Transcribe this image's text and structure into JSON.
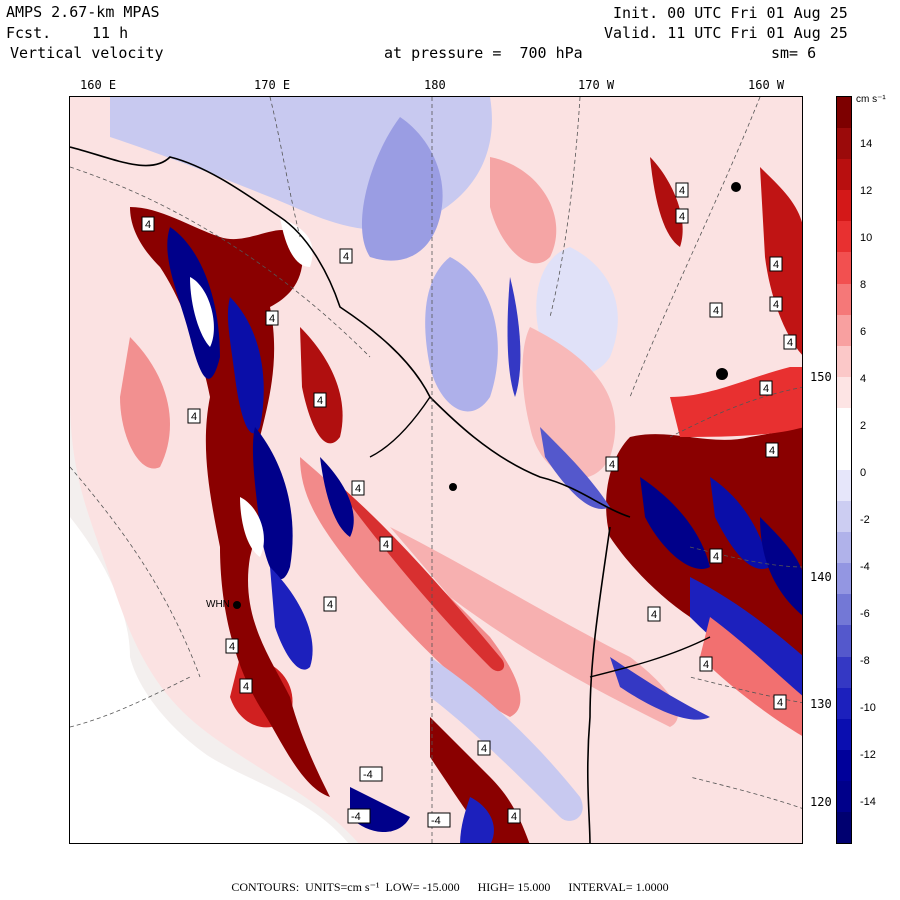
{
  "header": {
    "model": "AMPS 2.67-km MPAS",
    "fcst_label": "Fcst.",
    "fcst_value": "11 h",
    "variable": "Vertical velocity",
    "init": "Init. 00 UTC Fri 01 Aug 25",
    "valid": "Valid. 11 UTC Fri 01 Aug 25",
    "pressure": "at pressure =  700 hPa",
    "smoothing": "sm= 6"
  },
  "lon_ticks": [
    "160 E",
    "170 E",
    "180",
    "170 W",
    "160 W"
  ],
  "lat_ticks": [
    "150 W",
    "140 W",
    "130 W",
    "120 W"
  ],
  "colorbar": {
    "units": "cm s⁻¹",
    "labels": [
      "14",
      "12",
      "10",
      "8",
      "6",
      "4",
      "2",
      "0",
      "-2",
      "-4",
      "-6",
      "-8",
      "-10",
      "-12",
      "-14"
    ],
    "colors": [
      "#7d0000",
      "#9b0a0a",
      "#b80f0f",
      "#d41818",
      "#e83030",
      "#f25050",
      "#f57878",
      "#f8a0a0",
      "#fbc8c8",
      "#fde4e4",
      "#ffffff",
      "#ffffff",
      "#e6e6fa",
      "#cccdf2",
      "#b0b2ea",
      "#9396e2",
      "#7378d6",
      "#5458cc",
      "#3438c4",
      "#1c20bd",
      "#0a0eb0",
      "#00009a",
      "#00008a",
      "#000070"
    ]
  },
  "station": "WHN",
  "contour_marker": "4",
  "footer": {
    "contours": "CONTOURS:",
    "units": "UNITS=cm s⁻¹",
    "low": "LOW=  -15.000",
    "high": "HIGH=  15.000",
    "interval": "INTERVAL=  1.0000"
  }
}
